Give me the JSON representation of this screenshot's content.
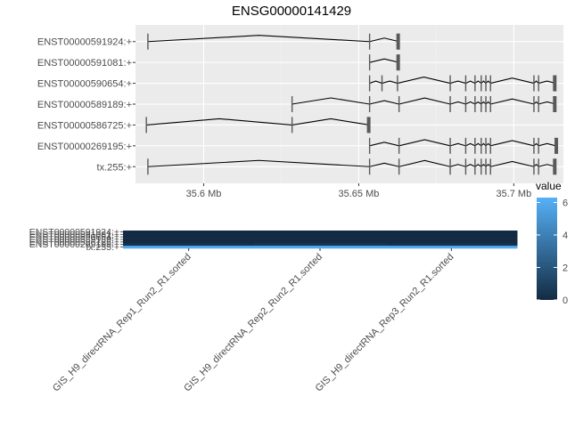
{
  "colors": {
    "panel_bg": "#ebebeb",
    "grid_major": "#ffffff",
    "grid_minor": "#f4f4f4",
    "segment": "#000000",
    "exon": "#595959",
    "axis_text": "#4d4d4d",
    "low": "#132b43",
    "high": "#56b1f7"
  },
  "chart_data": [
    {
      "type": "gene-structure",
      "title": "ENSG00000141429",
      "xlabel": "",
      "ylabel": "",
      "xlim": [
        35.578,
        35.716
      ],
      "x_unit": "Mb",
      "x_ticks": [
        35.6,
        35.65,
        35.7
      ],
      "x_tick_labels": [
        "35.6 Mb",
        "35.65 Mb",
        "35.7 Mb"
      ],
      "grid": true,
      "tracks": [
        {
          "label": "ENST00000591924:+",
          "exons": [
            35.582,
            35.6535,
            35.663
          ],
          "span": [
            35.582,
            35.663
          ]
        },
        {
          "label": "ENST00000591081:+",
          "exons": [
            35.6535,
            35.663
          ],
          "span": [
            35.6535,
            35.663
          ]
        },
        {
          "label": "ENST00000590654:+",
          "exons": [
            35.6535,
            35.6575,
            35.6625,
            35.6795,
            35.6845,
            35.6875,
            35.6895,
            35.691,
            35.6925,
            35.7065,
            35.708,
            35.7135
          ],
          "span": [
            35.6535,
            35.7135
          ]
        },
        {
          "label": "ENST00000589189:+",
          "exons": [
            35.6285,
            35.6535,
            35.663,
            35.6795,
            35.6845,
            35.6875,
            35.6895,
            35.691,
            35.6925,
            35.7065,
            35.708,
            35.7135
          ],
          "span": [
            35.6285,
            35.7135
          ]
        },
        {
          "label": "ENST00000586725:+",
          "exons": [
            35.5815,
            35.6285,
            35.6535
          ],
          "span": [
            35.5815,
            35.6535
          ]
        },
        {
          "label": "ENST00000269195:+",
          "exons": [
            35.6535,
            35.663,
            35.6795,
            35.6845,
            35.6875,
            35.6895,
            35.691,
            35.6925,
            35.7065,
            35.708,
            35.7135
          ],
          "span": [
            35.6535,
            35.714
          ]
        },
        {
          "label": "tx.255:+",
          "exons": [
            35.582,
            35.6535,
            35.663,
            35.6795,
            35.6845,
            35.6875,
            35.6895,
            35.691,
            35.6925,
            35.7065,
            35.708,
            35.7135
          ],
          "span": [
            35.582,
            35.7135
          ]
        }
      ]
    },
    {
      "type": "heatmap",
      "title": "",
      "rows": [
        "ENST00000591924:+",
        "ENST00000591081:+",
        "ENST00000590654:+",
        "ENST00000589189:+",
        "ENST00000586725:+",
        "ENST00000269195:+",
        "tx.255:+"
      ],
      "columns": [
        "GIS_H9_directRNA_Rep1_Run2_R1.sorted",
        "GIS_H9_directRNA_Rep2_Run2_R1.sorted",
        "GIS_H9_directRNA_Rep3_Run2_R1.sorted"
      ],
      "values": [
        [
          0,
          0,
          0
        ],
        [
          0,
          0,
          0
        ],
        [
          0,
          0,
          0
        ],
        [
          0,
          0,
          0
        ],
        [
          0,
          0,
          0
        ],
        [
          0.3,
          0.5,
          0.3
        ],
        [
          6,
          6,
          6
        ]
      ],
      "legend": {
        "title": "value",
        "min": 0,
        "max": 6.3,
        "ticks": [
          0,
          2,
          4,
          6
        ]
      }
    }
  ]
}
